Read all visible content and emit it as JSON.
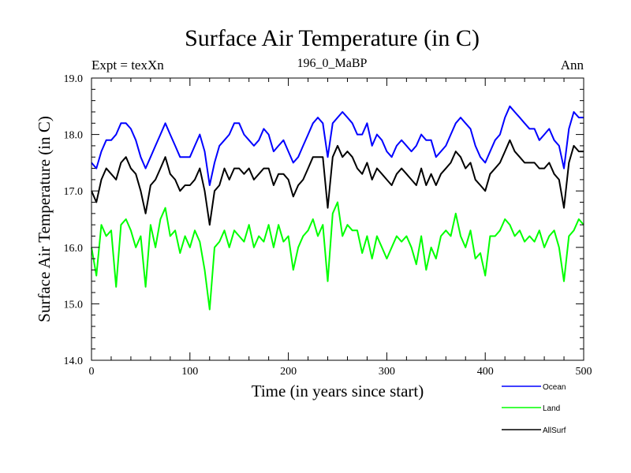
{
  "chart_data": {
    "type": "line",
    "title": "Surface Air Temperature (in C)",
    "subtitle_left": "Expt = texXn",
    "subtitle_center": "196_0_MaBP",
    "subtitle_right": "Ann",
    "xlabel": "Time (in years since start)",
    "ylabel": "Surface Air Temperature (in C)",
    "xlim": [
      0,
      500
    ],
    "ylim": [
      14.0,
      19.0
    ],
    "xticks": [
      0,
      100,
      200,
      300,
      400,
      500
    ],
    "xtick_labels": [
      "0",
      "100",
      "200",
      "300",
      "400",
      "500"
    ],
    "yticks": [
      14.0,
      15.0,
      16.0,
      17.0,
      18.0,
      19.0
    ],
    "ytick_labels": [
      "14.0",
      "15.0",
      "16.0",
      "17.0",
      "18.0",
      "19.0"
    ],
    "grid": false,
    "legend_position": "bottom-right, below plot",
    "series": [
      {
        "name": "Ocean",
        "color": "#0000ff",
        "x": [
          0,
          5,
          10,
          15,
          20,
          25,
          30,
          35,
          40,
          45,
          50,
          55,
          60,
          65,
          70,
          75,
          80,
          85,
          90,
          95,
          100,
          105,
          110,
          115,
          120,
          125,
          130,
          135,
          140,
          145,
          150,
          155,
          160,
          165,
          170,
          175,
          180,
          185,
          190,
          195,
          200,
          205,
          210,
          215,
          220,
          225,
          230,
          235,
          240,
          245,
          250,
          255,
          260,
          265,
          270,
          275,
          280,
          285,
          290,
          295,
          300,
          305,
          310,
          315,
          320,
          325,
          330,
          335,
          340,
          345,
          350,
          355,
          360,
          365,
          370,
          375,
          380,
          385,
          390,
          395,
          400,
          405,
          410,
          415,
          420,
          425,
          430,
          435,
          440,
          445,
          450,
          455,
          460,
          465,
          470,
          475,
          480,
          485,
          490,
          495,
          500
        ],
        "values": [
          17.5,
          17.4,
          17.7,
          17.9,
          17.9,
          18.0,
          18.2,
          18.2,
          18.1,
          17.9,
          17.6,
          17.4,
          17.6,
          17.8,
          18.0,
          18.2,
          18.0,
          17.8,
          17.6,
          17.6,
          17.6,
          17.8,
          18.0,
          17.7,
          17.1,
          17.5,
          17.8,
          17.9,
          18.0,
          18.2,
          18.2,
          18.0,
          17.9,
          17.8,
          17.9,
          18.1,
          18.0,
          17.7,
          17.8,
          17.9,
          17.7,
          17.5,
          17.6,
          17.8,
          18.0,
          18.2,
          18.3,
          18.2,
          17.6,
          18.2,
          18.3,
          18.4,
          18.3,
          18.2,
          18.0,
          18.0,
          18.2,
          17.8,
          18.0,
          17.9,
          17.7,
          17.6,
          17.8,
          17.9,
          17.8,
          17.7,
          17.8,
          18.0,
          17.9,
          17.9,
          17.6,
          17.7,
          17.8,
          18.0,
          18.2,
          18.3,
          18.2,
          18.1,
          17.8,
          17.6,
          17.5,
          17.7,
          17.9,
          18.0,
          18.3,
          18.5,
          18.4,
          18.3,
          18.2,
          18.1,
          18.1,
          17.9,
          18.0,
          18.1,
          17.9,
          17.8,
          17.4,
          18.1,
          18.4,
          18.3,
          18.3
        ]
      },
      {
        "name": "Land",
        "color": "#00ff00",
        "x": [
          0,
          5,
          10,
          15,
          20,
          25,
          30,
          35,
          40,
          45,
          50,
          55,
          60,
          65,
          70,
          75,
          80,
          85,
          90,
          95,
          100,
          105,
          110,
          115,
          120,
          125,
          130,
          135,
          140,
          145,
          150,
          155,
          160,
          165,
          170,
          175,
          180,
          185,
          190,
          195,
          200,
          205,
          210,
          215,
          220,
          225,
          230,
          235,
          240,
          245,
          250,
          255,
          260,
          265,
          270,
          275,
          280,
          285,
          290,
          295,
          300,
          305,
          310,
          315,
          320,
          325,
          330,
          335,
          340,
          345,
          350,
          355,
          360,
          365,
          370,
          375,
          380,
          385,
          390,
          395,
          400,
          405,
          410,
          415,
          420,
          425,
          430,
          435,
          440,
          445,
          450,
          455,
          460,
          465,
          470,
          475,
          480,
          485,
          490,
          495,
          500
        ],
        "values": [
          16.0,
          15.5,
          16.4,
          16.2,
          16.3,
          15.3,
          16.4,
          16.5,
          16.3,
          16.0,
          16.2,
          15.3,
          16.4,
          16.0,
          16.5,
          16.7,
          16.2,
          16.3,
          15.9,
          16.2,
          16.0,
          16.3,
          16.1,
          15.6,
          14.9,
          16.0,
          16.1,
          16.3,
          16.0,
          16.3,
          16.2,
          16.1,
          16.4,
          16.0,
          16.2,
          16.1,
          16.4,
          16.0,
          16.4,
          16.1,
          16.2,
          15.6,
          16.0,
          16.2,
          16.3,
          16.5,
          16.2,
          16.4,
          15.4,
          16.6,
          16.8,
          16.2,
          16.4,
          16.3,
          16.3,
          15.9,
          16.2,
          15.8,
          16.2,
          16.0,
          15.8,
          16.0,
          16.2,
          16.1,
          16.2,
          16.0,
          15.7,
          16.2,
          15.6,
          16.0,
          15.8,
          16.2,
          16.3,
          16.2,
          16.6,
          16.2,
          16.0,
          16.3,
          15.8,
          15.9,
          15.5,
          16.2,
          16.2,
          16.3,
          16.5,
          16.4,
          16.2,
          16.3,
          16.1,
          16.2,
          16.1,
          16.3,
          16.0,
          16.2,
          16.3,
          16.0,
          15.4,
          16.2,
          16.3,
          16.5,
          16.4
        ]
      },
      {
        "name": "AllSurf",
        "color": "#000000",
        "x": [
          0,
          5,
          10,
          15,
          20,
          25,
          30,
          35,
          40,
          45,
          50,
          55,
          60,
          65,
          70,
          75,
          80,
          85,
          90,
          95,
          100,
          105,
          110,
          115,
          120,
          125,
          130,
          135,
          140,
          145,
          150,
          155,
          160,
          165,
          170,
          175,
          180,
          185,
          190,
          195,
          200,
          205,
          210,
          215,
          220,
          225,
          230,
          235,
          240,
          245,
          250,
          255,
          260,
          265,
          270,
          275,
          280,
          285,
          290,
          295,
          300,
          305,
          310,
          315,
          320,
          325,
          330,
          335,
          340,
          345,
          350,
          355,
          360,
          365,
          370,
          375,
          380,
          385,
          390,
          395,
          400,
          405,
          410,
          415,
          420,
          425,
          430,
          435,
          440,
          445,
          450,
          455,
          460,
          465,
          470,
          475,
          480,
          485,
          490,
          495,
          500
        ],
        "values": [
          17.0,
          16.8,
          17.2,
          17.4,
          17.3,
          17.2,
          17.5,
          17.6,
          17.4,
          17.3,
          17.0,
          16.6,
          17.1,
          17.2,
          17.4,
          17.6,
          17.3,
          17.2,
          17.0,
          17.1,
          17.1,
          17.2,
          17.4,
          17.0,
          16.4,
          17.0,
          17.1,
          17.4,
          17.2,
          17.4,
          17.4,
          17.3,
          17.4,
          17.2,
          17.3,
          17.4,
          17.4,
          17.1,
          17.3,
          17.3,
          17.2,
          16.9,
          17.1,
          17.2,
          17.4,
          17.6,
          17.6,
          17.6,
          16.7,
          17.6,
          17.8,
          17.6,
          17.7,
          17.6,
          17.4,
          17.3,
          17.5,
          17.2,
          17.4,
          17.3,
          17.2,
          17.1,
          17.3,
          17.4,
          17.3,
          17.2,
          17.1,
          17.4,
          17.1,
          17.3,
          17.1,
          17.3,
          17.4,
          17.5,
          17.7,
          17.6,
          17.4,
          17.5,
          17.2,
          17.1,
          17.0,
          17.3,
          17.4,
          17.5,
          17.7,
          17.9,
          17.7,
          17.6,
          17.5,
          17.5,
          17.5,
          17.4,
          17.4,
          17.5,
          17.3,
          17.2,
          16.7,
          17.5,
          17.8,
          17.7,
          17.7
        ]
      }
    ]
  }
}
